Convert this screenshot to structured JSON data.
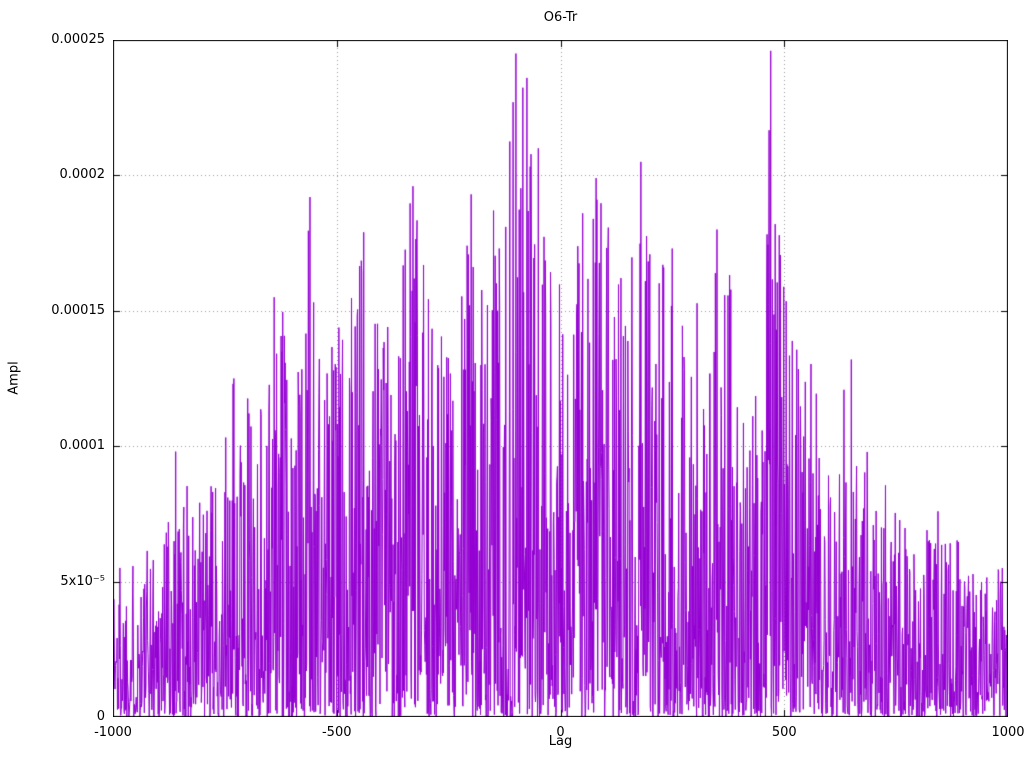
{
  "chart_data": {
    "type": "line",
    "title": "O6-Tr",
    "xlabel": "Lag",
    "ylabel": "Ampl",
    "xlim": [
      -1000,
      1000
    ],
    "ylim": [
      0,
      0.00025
    ],
    "x_ticks": [
      {
        "v": -1000,
        "label": "-1000"
      },
      {
        "v": -500,
        "label": "-500"
      },
      {
        "v": 0,
        "label": "0"
      },
      {
        "v": 500,
        "label": "500"
      },
      {
        "v": 1000,
        "label": "1000"
      }
    ],
    "y_ticks": [
      {
        "v": 0,
        "label": "0"
      },
      {
        "v": 5e-05,
        "label": "5x10⁻⁵"
      },
      {
        "v": 0.0001,
        "label": "0.0001"
      },
      {
        "v": 0.00015,
        "label": "0.00015"
      },
      {
        "v": 0.0002,
        "label": "0.0002"
      },
      {
        "v": 0.00025,
        "label": "0.00025"
      }
    ],
    "grid": true,
    "line_color": "#9400d3",
    "grid_color": "#9a9a9a",
    "border_color": "#000000",
    "background_color": "#ffffff",
    "n_points": 2200,
    "seed": 1337,
    "envelope": [
      [
        -1000,
        6.5e-05
      ],
      [
        -950,
        6e-05
      ],
      [
        -900,
        7e-05
      ],
      [
        -860,
        0.0001
      ],
      [
        -820,
        8e-05
      ],
      [
        -760,
        9e-05
      ],
      [
        -730,
        0.000125
      ],
      [
        -700,
        0.00012
      ],
      [
        -660,
        0.00013
      ],
      [
        -620,
        0.000155
      ],
      [
        -580,
        0.00013
      ],
      [
        -560,
        0.00019
      ],
      [
        -530,
        0.00014
      ],
      [
        -500,
        0.00015
      ],
      [
        -470,
        0.000165
      ],
      [
        -440,
        0.00018
      ],
      [
        -410,
        0.000165
      ],
      [
        -380,
        0.00016
      ],
      [
        -350,
        0.000185
      ],
      [
        -330,
        0.000196
      ],
      [
        -300,
        0.00016
      ],
      [
        -270,
        0.00015
      ],
      [
        -240,
        0.000145
      ],
      [
        -210,
        0.00019
      ],
      [
        -180,
        0.00016
      ],
      [
        -150,
        0.000185
      ],
      [
        -120,
        0.0002
      ],
      [
        -100,
        0.000245
      ],
      [
        -80,
        0.000235
      ],
      [
        -60,
        0.00021
      ],
      [
        -30,
        0.00017
      ],
      [
        0,
        0.00016
      ],
      [
        30,
        0.00017
      ],
      [
        60,
        0.000185
      ],
      [
        90,
        0.0002
      ],
      [
        120,
        0.00017
      ],
      [
        150,
        0.000165
      ],
      [
        180,
        0.000205
      ],
      [
        210,
        0.00017
      ],
      [
        250,
        0.000175
      ],
      [
        300,
        0.000165
      ],
      [
        330,
        0.000148
      ],
      [
        360,
        0.00018
      ],
      [
        390,
        0.00017
      ],
      [
        420,
        0.00012
      ],
      [
        450,
        0.00013
      ],
      [
        470,
        0.000246
      ],
      [
        490,
        0.00018
      ],
      [
        520,
        0.000138
      ],
      [
        560,
        0.000137
      ],
      [
        600,
        0.00011
      ],
      [
        640,
        0.000132
      ],
      [
        680,
        0.0001
      ],
      [
        720,
        9e-05
      ],
      [
        760,
        7.8e-05
      ],
      [
        800,
        7.2e-05
      ],
      [
        840,
        7.8e-05
      ],
      [
        880,
        7e-05
      ],
      [
        920,
        6e-05
      ],
      [
        960,
        5.5e-05
      ],
      [
        1000,
        6e-05
      ]
    ],
    "peaks": [
      [
        -860,
        9.8e-05
      ],
      [
        -730,
        0.000125
      ],
      [
        -640,
        0.000155
      ],
      [
        -560,
        0.000192
      ],
      [
        -440,
        0.000179
      ],
      [
        -330,
        0.000196
      ],
      [
        -200,
        0.000193
      ],
      [
        -150,
        0.000187
      ],
      [
        -100,
        0.000245
      ],
      [
        -75,
        0.000236
      ],
      [
        -50,
        0.00021
      ],
      [
        50,
        0.000186
      ],
      [
        80,
        0.000199
      ],
      [
        180,
        0.000205
      ],
      [
        250,
        0.000173
      ],
      [
        350,
        0.00018
      ],
      [
        470,
        0.000246
      ],
      [
        480,
        0.000182
      ],
      [
        650,
        0.000132
      ]
    ]
  }
}
